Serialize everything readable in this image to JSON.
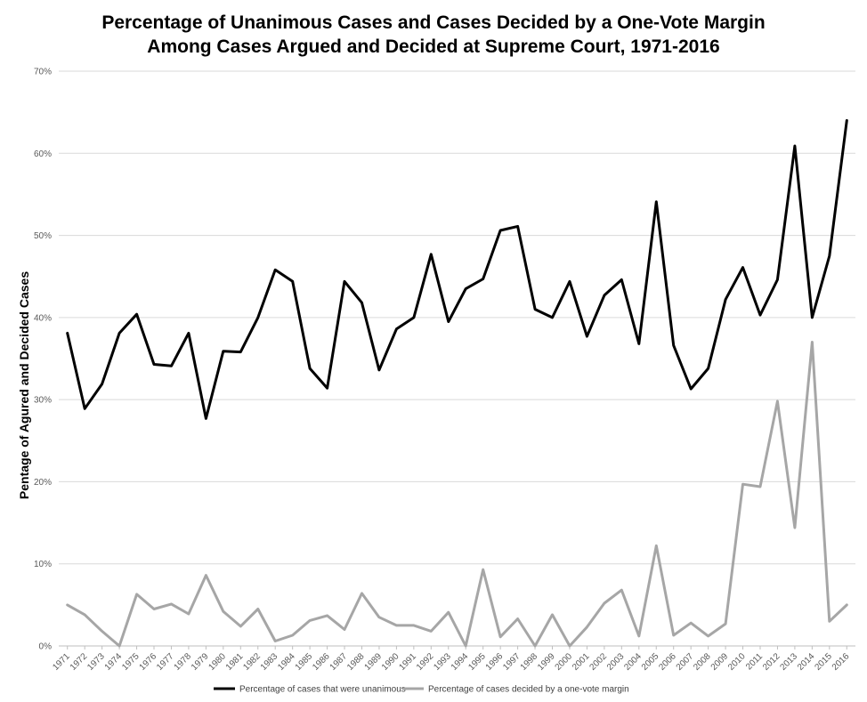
{
  "chart_data": {
    "type": "line",
    "title": [
      "Percentage of Unanimous Cases and Cases Decided by a One-Vote Margin",
      "Among Cases Argued and Decided at Supreme Court, 1971-2016"
    ],
    "xlabel": "",
    "ylabel": "Pentage of Agured and Decided Cases",
    "ylim": [
      0,
      70
    ],
    "yticks": [
      0,
      10,
      20,
      30,
      40,
      50,
      60,
      70
    ],
    "ytick_labels": [
      "0%",
      "10%",
      "20%",
      "30%",
      "40%",
      "50%",
      "60%",
      "70%"
    ],
    "grid": true,
    "legend_position": "bottom",
    "x": [
      "1971",
      "1972",
      "1973",
      "1974",
      "1975",
      "1976",
      "1977",
      "1978",
      "1979",
      "1980",
      "1981",
      "1982",
      "1983",
      "1984",
      "1985",
      "1986",
      "1987",
      "1988",
      "1989",
      "1990",
      "1991",
      "1992",
      "1993",
      "1994",
      "1995",
      "1996",
      "1997",
      "1998",
      "1999",
      "2000",
      "2001",
      "2002",
      "2003",
      "2004",
      "2005",
      "2006",
      "2007",
      "2008",
      "2009",
      "2010",
      "2011",
      "2012",
      "2013",
      "2014",
      "2015",
      "2016"
    ],
    "series": [
      {
        "name": "Percentage of cases that were unanimous",
        "color": "#000000",
        "values": [
          38.1,
          28.9,
          31.9,
          38.1,
          40.4,
          34.3,
          34.1,
          38.1,
          27.7,
          35.9,
          35.8,
          40.0,
          45.8,
          44.4,
          33.8,
          31.4,
          44.4,
          41.8,
          33.6,
          38.6,
          40.0,
          47.7,
          39.5,
          43.5,
          44.7,
          50.6,
          51.1,
          41.0,
          40.0,
          44.4,
          37.7,
          42.7,
          44.6,
          36.8,
          54.1,
          36.6,
          31.3,
          33.8,
          42.2,
          46.1,
          40.3,
          44.6,
          60.9,
          40.0,
          47.5,
          64.0
        ]
      },
      {
        "name": "Percentage of cases decided by a one-vote margin",
        "color": "#a6a6a6",
        "values": [
          5.0,
          3.8,
          1.8,
          0.0,
          6.3,
          4.5,
          5.1,
          3.9,
          8.6,
          4.2,
          2.4,
          4.5,
          0.6,
          1.3,
          3.1,
          3.7,
          2.0,
          6.4,
          3.5,
          2.5,
          2.5,
          1.8,
          4.1,
          0.0,
          9.3,
          1.1,
          3.3,
          0.0,
          3.8,
          0.0,
          2.3,
          5.2,
          6.8,
          1.2,
          12.2,
          1.3,
          2.8,
          1.2,
          2.7,
          19.7,
          19.4,
          29.8,
          14.4,
          37.0,
          3.0,
          5.0
        ]
      }
    ]
  }
}
